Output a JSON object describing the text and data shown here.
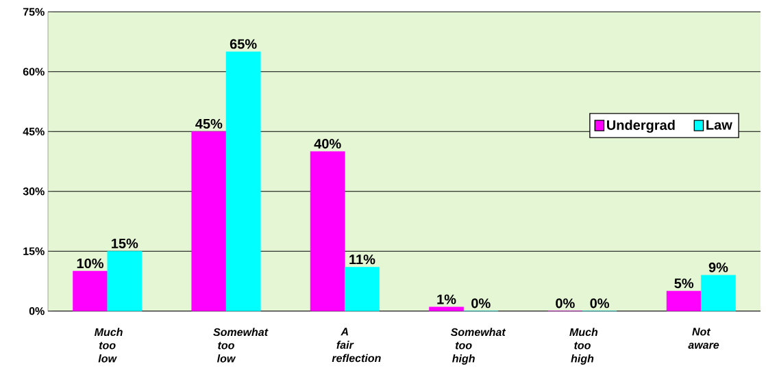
{
  "chart_data": {
    "type": "bar",
    "categories": [
      "Much too low",
      "Somewhat too low",
      "A fair reflection",
      "Somewhat too high",
      "Much too high",
      "Not aware"
    ],
    "series": [
      {
        "name": "Undergrad",
        "color": "#ff00ff",
        "values": [
          10,
          45,
          40,
          1,
          0,
          5
        ],
        "value_labels": [
          "10%",
          "45%",
          "40%",
          "1%",
          "0%",
          "5%"
        ]
      },
      {
        "name": "Law",
        "color": "#00ffff",
        "values": [
          15,
          65,
          11,
          0,
          0,
          9
        ],
        "value_labels": [
          "15%",
          "65%",
          "11%",
          "0%",
          "0%",
          "9%"
        ]
      }
    ],
    "ylim": [
      0,
      75
    ],
    "yticks": [
      {
        "value": 0,
        "label": "0%"
      },
      {
        "value": 15,
        "label": "15%"
      },
      {
        "value": 30,
        "label": "30%"
      },
      {
        "value": 45,
        "label": "45%"
      },
      {
        "value": 60,
        "label": "60%"
      },
      {
        "value": 75,
        "label": "75%"
      }
    ],
    "grid": "y",
    "legend": "right"
  }
}
